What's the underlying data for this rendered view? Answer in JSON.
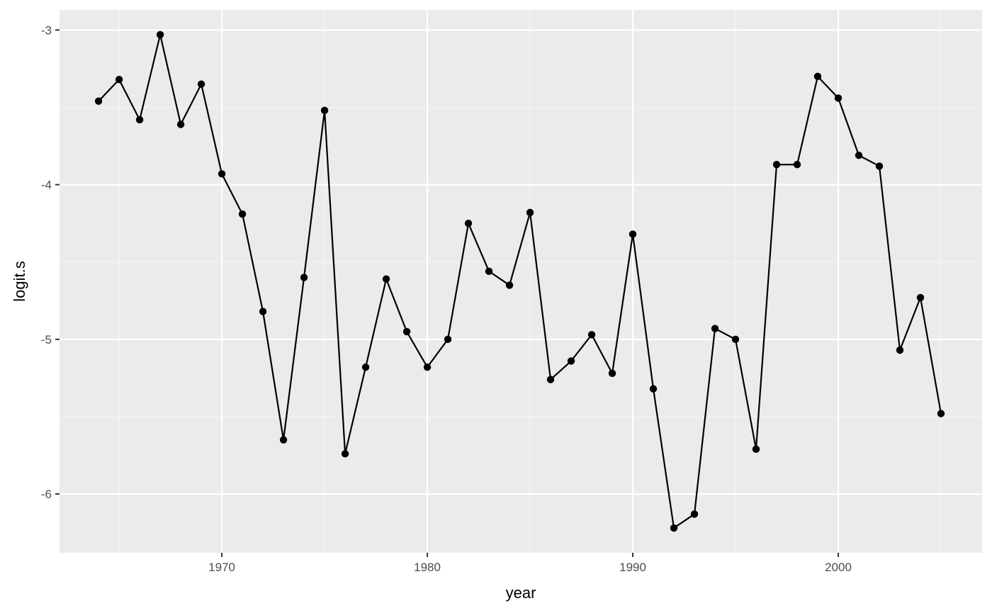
{
  "chart_data": {
    "type": "line",
    "xlabel": "year",
    "ylabel": "logit.s",
    "xlim": [
      1962.1,
      2007.0
    ],
    "ylim": [
      -6.38,
      -2.87
    ],
    "x_ticks": [
      1970,
      1980,
      1990,
      2000
    ],
    "y_ticks": [
      -3,
      -4,
      -5,
      -6
    ],
    "x_tick_labels": [
      "1970",
      "1980",
      "1990",
      "2000"
    ],
    "y_tick_labels": [
      "-3",
      "-4",
      "-5",
      "-6"
    ],
    "grid": true,
    "legend": "none",
    "series": [
      {
        "x": [
          1964,
          1965,
          1966,
          1967,
          1968,
          1969,
          1970,
          1971,
          1972,
          1973,
          1974,
          1975,
          1976,
          1977,
          1978,
          1979,
          1980,
          1981,
          1982,
          1983,
          1984,
          1985,
          1986,
          1987,
          1988,
          1989,
          1990,
          1991,
          1992,
          1993,
          1994,
          1995,
          1996,
          1997,
          1998,
          1999,
          2000,
          2001,
          2002,
          2003,
          2004,
          2005
        ],
        "y": [
          -3.46,
          -3.32,
          -3.58,
          -3.03,
          -3.61,
          -3.35,
          -3.93,
          -4.19,
          -4.82,
          -5.65,
          -4.6,
          -3.52,
          -5.74,
          -5.18,
          -4.61,
          -4.95,
          -5.18,
          -5.0,
          -4.25,
          -4.56,
          -4.65,
          -4.18,
          -5.26,
          -5.14,
          -4.97,
          -5.22,
          -4.32,
          -5.32,
          -6.22,
          -6.13,
          -4.93,
          -5.0,
          -5.71,
          -3.87,
          -3.87,
          -3.3,
          -3.44,
          -3.81,
          -3.88,
          -5.07,
          -4.73,
          -5.48
        ]
      }
    ],
    "colors": {
      "panel_background": "#ebebeb",
      "grid_major": "#ffffff",
      "grid_minor": "#f5f5f5",
      "line": "#000000",
      "point": "#000000"
    }
  }
}
